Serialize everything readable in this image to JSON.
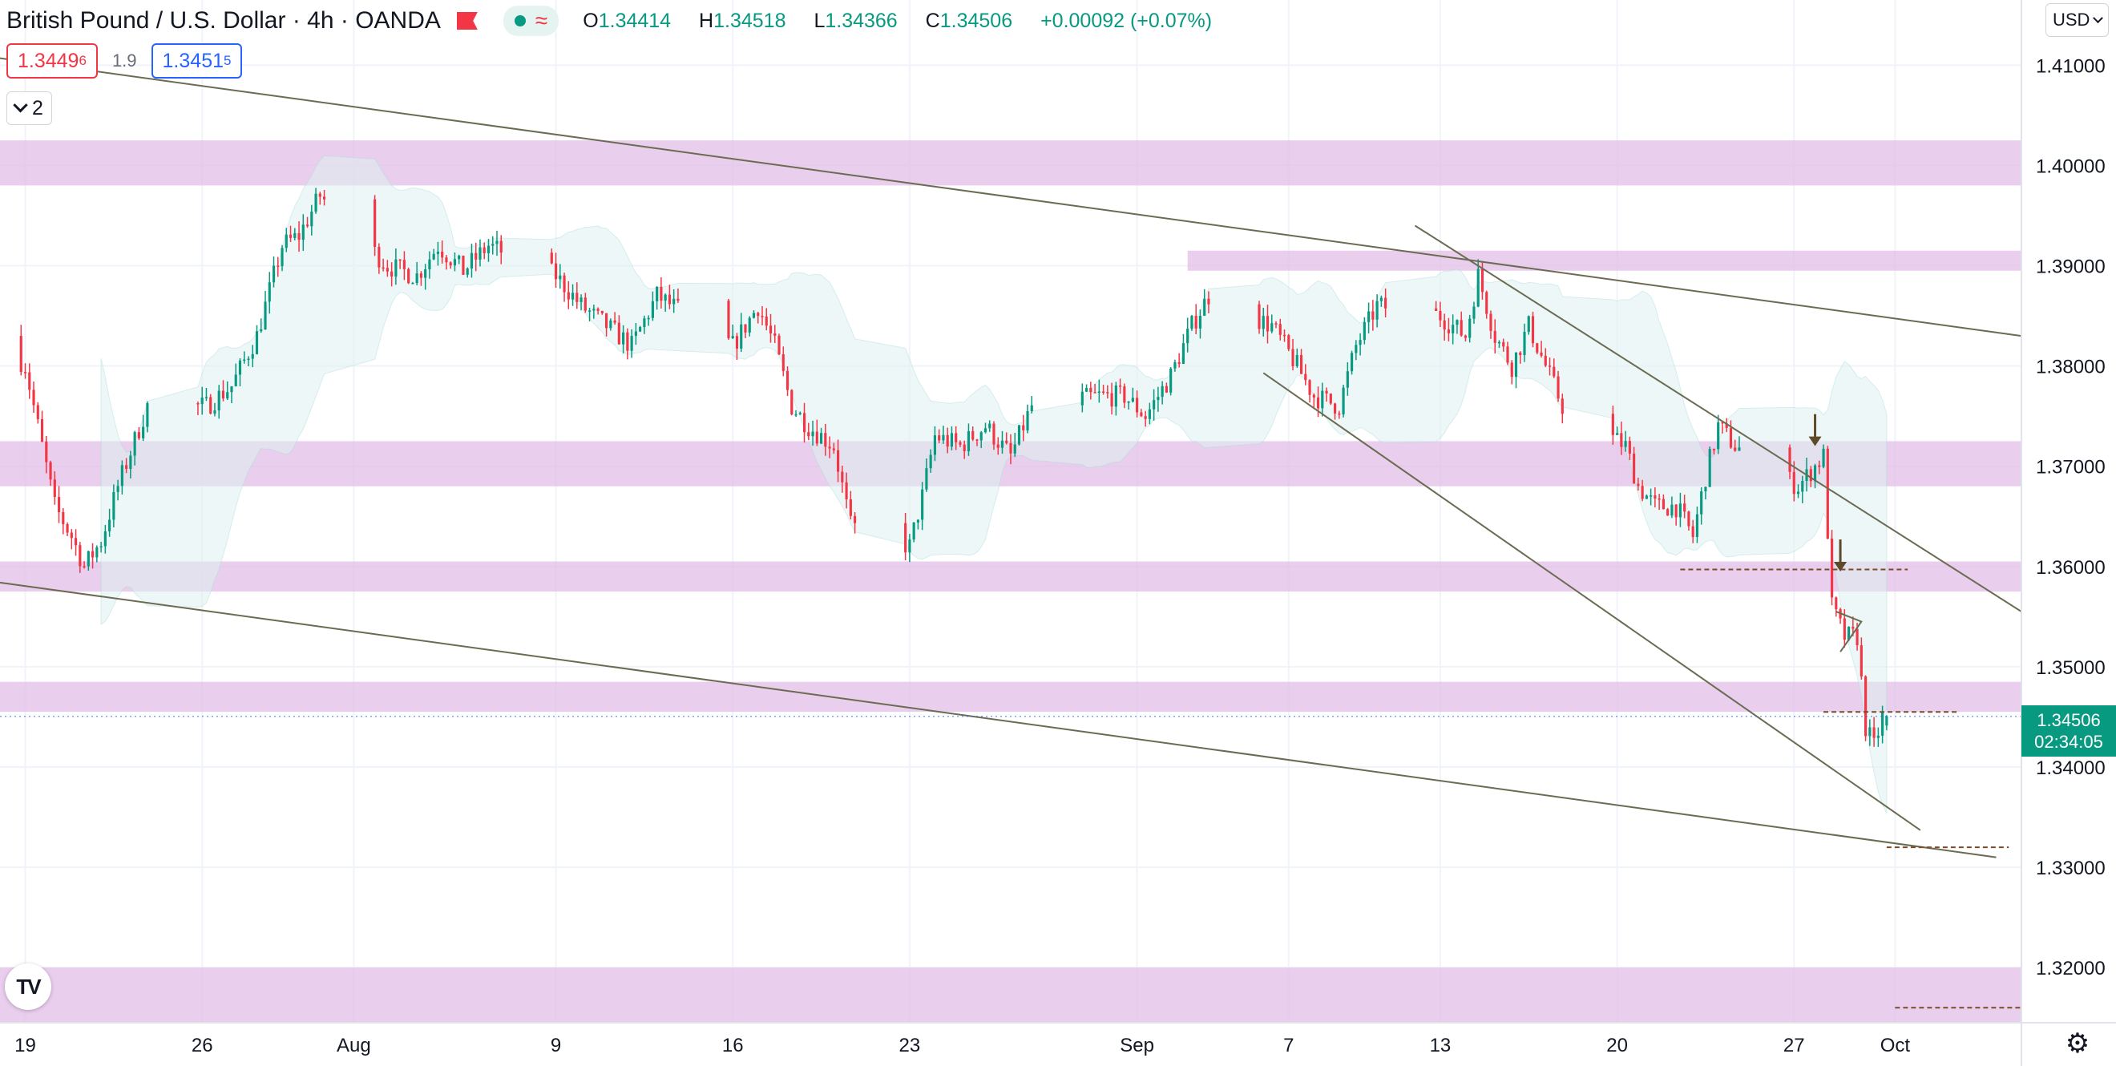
{
  "header": {
    "symbol": "British Pound / U.S. Dollar",
    "interval": "4h",
    "broker": "OANDA",
    "o_label": "O",
    "o_value": "1.34414",
    "h_label": "H",
    "h_value": "1.34518",
    "l_label": "L",
    "l_value": "1.34366",
    "c_label": "C",
    "c_value": "1.34506",
    "change": "+0.00092 (+0.07%)",
    "flag_icon": "flag-icon",
    "indicator_icon": "wave-icon"
  },
  "trade": {
    "sell_main": "1.3449",
    "sell_sup": "6",
    "spread": "1.9",
    "buy_main": "1.3451",
    "buy_sup": "5"
  },
  "indicators_toggle": {
    "count": "2"
  },
  "currency_selector": {
    "label": "USD"
  },
  "last_price": {
    "price": "1.34506",
    "countdown": "02:34:05"
  },
  "logo_text": "TV",
  "colors": {
    "up": "#089981",
    "down": "#f23645",
    "zone": "#e1bee7",
    "band": "#e0f2f1",
    "trend": "#6b6b52",
    "level": "#7a4b2a"
  },
  "chart_data": {
    "type": "candlestick",
    "title": "British Pound / U.S. Dollar, 4h, OANDA",
    "y_axis": {
      "ticks": [
        1.41,
        1.4,
        1.39,
        1.38,
        1.37,
        1.36,
        1.35,
        1.34,
        1.33,
        1.32
      ],
      "tick_labels": [
        "1.41000",
        "1.40000",
        "1.39000",
        "1.38000",
        "1.37000",
        "1.36000",
        "1.35000",
        "1.34000",
        "1.33000",
        "1.32000"
      ],
      "ylim": [
        1.3145,
        1.4165
      ]
    },
    "x_axis": {
      "xlim_days": [
        "2021-07-18",
        "2021-10-06"
      ],
      "tick_labels": [
        {
          "date": "2021-07-19",
          "label": "19"
        },
        {
          "date": "2021-07-26",
          "label": "26"
        },
        {
          "date": "2021-08-01",
          "label": "Aug"
        },
        {
          "date": "2021-08-09",
          "label": "9"
        },
        {
          "date": "2021-08-16",
          "label": "16"
        },
        {
          "date": "2021-08-23",
          "label": "23"
        },
        {
          "date": "2021-09-01",
          "label": "Sep"
        },
        {
          "date": "2021-09-07",
          "label": "7"
        },
        {
          "date": "2021-09-13",
          "label": "13"
        },
        {
          "date": "2021-09-20",
          "label": "20"
        },
        {
          "date": "2021-09-27",
          "label": "27"
        },
        {
          "date": "2021-10-01",
          "label": "Oct"
        }
      ]
    },
    "close_anchors": [
      [
        "2021-07-18T00",
        1.383
      ],
      [
        "2021-07-19T00",
        1.38
      ],
      [
        "2021-07-20T04",
        1.366
      ],
      [
        "2021-07-20T20",
        1.363
      ],
      [
        "2021-07-21T08",
        1.36
      ],
      [
        "2021-07-22T00",
        1.3625
      ],
      [
        "2021-07-22T16",
        1.368
      ],
      [
        "2021-07-23T20",
        1.376
      ],
      [
        "2021-07-26T04",
        1.376
      ],
      [
        "2021-07-27T04",
        1.378
      ],
      [
        "2021-07-28T04",
        1.383
      ],
      [
        "2021-07-29T04",
        1.392
      ],
      [
        "2021-07-29T20",
        1.393
      ],
      [
        "2021-07-30T16",
        1.397
      ],
      [
        "2021-08-02T08",
        1.39
      ],
      [
        "2021-08-03T12",
        1.389
      ],
      [
        "2021-08-04T08",
        1.392
      ],
      [
        "2021-08-05T08",
        1.3895
      ],
      [
        "2021-08-06T08",
        1.392
      ],
      [
        "2021-08-09T00",
        1.389
      ],
      [
        "2021-08-10T00",
        1.386
      ],
      [
        "2021-08-11T00",
        1.384
      ],
      [
        "2021-08-12T00",
        1.382
      ],
      [
        "2021-08-13T00",
        1.387
      ],
      [
        "2021-08-16T00",
        1.382
      ],
      [
        "2021-08-17T00",
        1.386
      ],
      [
        "2021-08-17T16",
        1.382
      ],
      [
        "2021-08-18T08",
        1.376
      ],
      [
        "2021-08-19T00",
        1.374
      ],
      [
        "2021-08-20T00",
        1.372
      ],
      [
        "2021-08-20T16",
        1.364
      ],
      [
        "2021-08-23T00",
        1.362
      ],
      [
        "2021-08-23T12",
        1.367
      ],
      [
        "2021-08-24T00",
        1.373
      ],
      [
        "2021-08-25T00",
        1.372
      ],
      [
        "2021-08-26T00",
        1.374
      ],
      [
        "2021-08-27T00",
        1.371
      ],
      [
        "2021-08-27T20",
        1.376
      ],
      [
        "2021-08-30T12",
        1.377
      ],
      [
        "2021-08-31T12",
        1.377
      ],
      [
        "2021-09-01T08",
        1.375
      ],
      [
        "2021-09-02T08",
        1.379
      ],
      [
        "2021-09-03T04",
        1.384
      ],
      [
        "2021-09-03T20",
        1.387
      ],
      [
        "2021-09-06T08",
        1.384
      ],
      [
        "2021-09-07T08",
        1.38
      ],
      [
        "2021-09-08T00",
        1.377
      ],
      [
        "2021-09-09T00",
        1.376
      ],
      [
        "2021-09-09T16",
        1.382
      ],
      [
        "2021-09-10T12",
        1.386
      ],
      [
        "2021-09-13T00",
        1.385
      ],
      [
        "2021-09-14T00",
        1.383
      ],
      [
        "2021-09-14T12",
        1.389
      ],
      [
        "2021-09-15T04",
        1.383
      ],
      [
        "2021-09-15T20",
        1.38
      ],
      [
        "2021-09-16T12",
        1.384
      ],
      [
        "2021-09-17T08",
        1.379
      ],
      [
        "2021-09-17T20",
        1.376
      ],
      [
        "2021-09-20T08",
        1.372
      ],
      [
        "2021-09-20T20",
        1.368
      ],
      [
        "2021-09-21T12",
        1.366
      ],
      [
        "2021-09-22T08",
        1.366
      ],
      [
        "2021-09-23T00",
        1.363
      ],
      [
        "2021-09-23T12",
        1.369
      ],
      [
        "2021-09-24T00",
        1.374
      ],
      [
        "2021-09-24T16",
        1.372
      ],
      [
        "2021-09-27T04",
        1.368
      ],
      [
        "2021-09-27T20",
        1.37
      ],
      [
        "2021-09-28T04",
        1.371
      ],
      [
        "2021-09-28T12",
        1.356
      ],
      [
        "2021-09-29T00",
        1.353
      ],
      [
        "2021-09-29T12",
        1.353
      ],
      [
        "2021-09-29T20",
        1.344
      ],
      [
        "2021-09-30T04",
        1.342
      ],
      [
        "2021-09-30T12",
        1.345
      ]
    ],
    "last": {
      "open": 1.34414,
      "high": 1.34518,
      "low": 1.34366,
      "close": 1.34506
    },
    "zones": [
      [
        1.398,
        1.4025
      ],
      [
        1.3895,
        1.3915
      ],
      [
        1.368,
        1.3725
      ],
      [
        1.3575,
        1.3605
      ],
      [
        1.3455,
        1.3485
      ],
      [
        1.3145,
        1.32
      ]
    ],
    "trendlines": [
      [
        [
          "2021-07-18",
          1.4107
        ],
        [
          "2021-10-06",
          1.383
        ]
      ],
      [
        [
          "2021-07-18",
          1.3584
        ],
        [
          "2021-10-05",
          1.331
        ]
      ],
      [
        [
          "2021-09-12",
          1.394
        ],
        [
          "2021-10-06",
          1.3555
        ]
      ],
      [
        [
          "2021-09-06",
          1.3793
        ],
        [
          "2021-10-02",
          1.3337
        ]
      ]
    ],
    "dashed_levels": [
      [
        [
          "2021-09-22T12",
          "2021-10-01T12"
        ],
        1.3597
      ],
      [
        [
          "2021-09-28T04",
          "2021-10-03T12"
        ],
        1.3455
      ],
      [
        [
          "2021-09-30T16",
          "2021-10-05T12"
        ],
        1.332
      ],
      [
        [
          "2021-10-01T00",
          "2021-10-06T00"
        ],
        1.316
      ]
    ],
    "arrows": [
      [
        "2021-09-27T20",
        1.372
      ],
      [
        "2021-09-28T20",
        1.3595
      ]
    ],
    "last_price_line": 1.34506
  }
}
